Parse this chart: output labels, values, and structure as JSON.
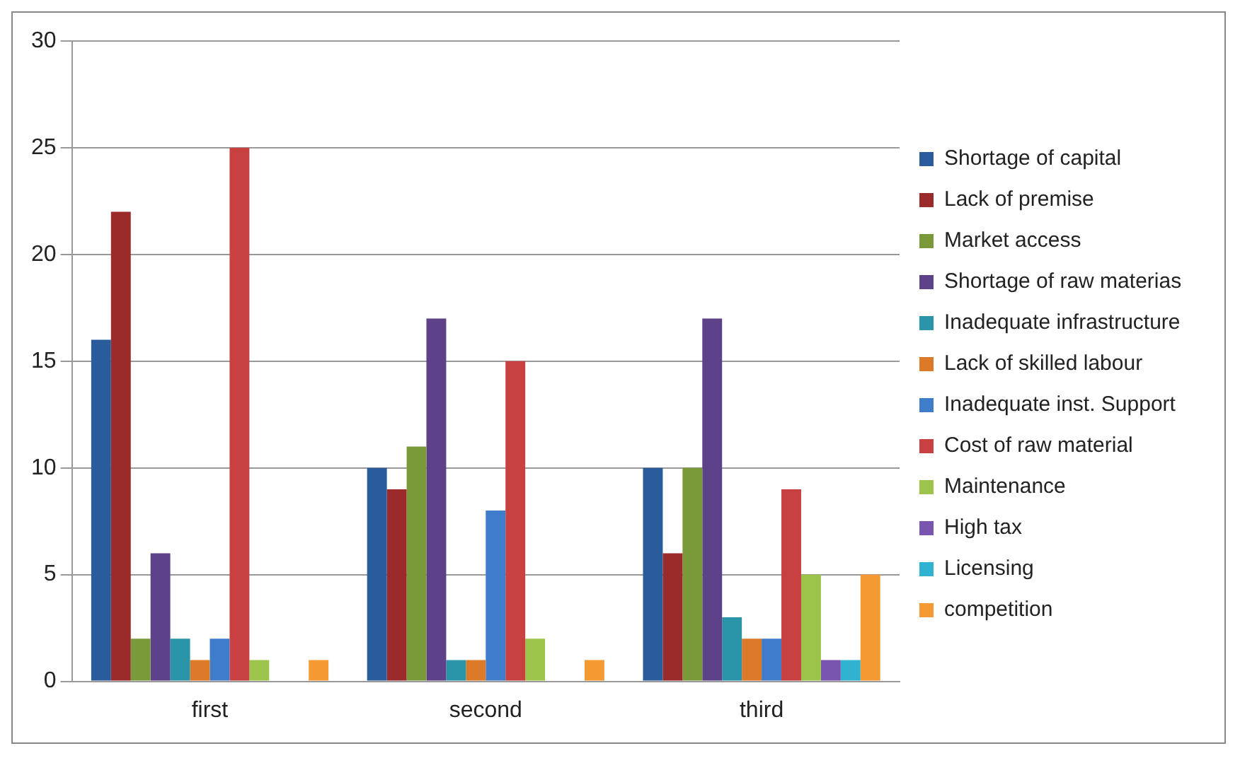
{
  "chart_data": {
    "type": "bar",
    "categories": [
      "first",
      "second",
      "third"
    ],
    "series": [
      {
        "name": "Shortage of capital",
        "color": "#2a5b9a",
        "values": [
          16,
          10,
          10
        ]
      },
      {
        "name": "Lack of premise",
        "color": "#9b2b2b",
        "values": [
          22,
          9,
          6
        ]
      },
      {
        "name": "Market access",
        "color": "#7a9a3a",
        "values": [
          2,
          11,
          10
        ]
      },
      {
        "name": "Shortage of raw materias",
        "color": "#5e4289",
        "values": [
          6,
          17,
          17
        ]
      },
      {
        "name": "Inadequate infrastructure",
        "color": "#2a95a8",
        "values": [
          2,
          1,
          3
        ]
      },
      {
        "name": "Lack of skilled labour",
        "color": "#dc7a2a",
        "values": [
          1,
          1,
          2
        ]
      },
      {
        "name": "Inadequate inst. Support",
        "color": "#3f7cc9",
        "values": [
          2,
          8,
          2
        ]
      },
      {
        "name": "Cost of raw material",
        "color": "#c84040",
        "values": [
          25,
          15,
          9
        ]
      },
      {
        "name": "Maintenance",
        "color": "#9cc44a",
        "values": [
          1,
          2,
          5
        ]
      },
      {
        "name": "High tax",
        "color": "#7a55b0",
        "values": [
          0,
          0,
          1
        ]
      },
      {
        "name": "Licensing",
        "color": "#2fb3d1",
        "values": [
          0,
          0,
          1
        ]
      },
      {
        "name": "competition",
        "color": "#f59a32",
        "values": [
          1,
          1,
          5
        ]
      }
    ],
    "ylim": [
      0,
      30
    ],
    "yticks": [
      0,
      5,
      10,
      15,
      20,
      25,
      30
    ],
    "grid": "y",
    "legend": "right"
  }
}
